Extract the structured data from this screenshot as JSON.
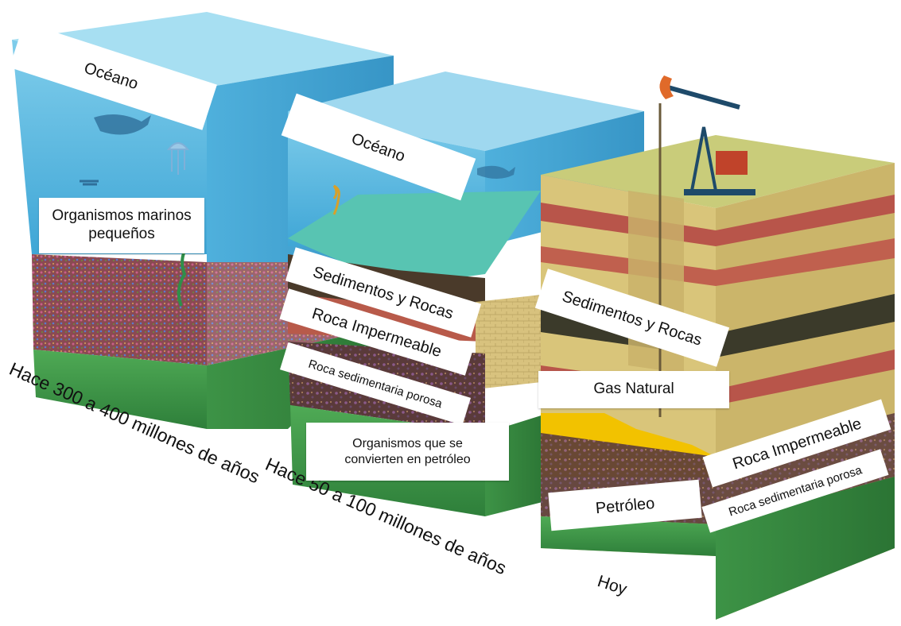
{
  "labels": {
    "ocean_1": "Océano",
    "small_marine_organisms": "Organismos marinos pequeños",
    "ocean_2": "Océano",
    "sediments_rocks_2": "Sedimentos y Rocas",
    "impermeable_rock_2": "Roca Impermeable",
    "porous_rock_2": "Roca sedimentaria porosa",
    "organisms_to_oil": "Organismos que se convierten en petróleo",
    "sediments_rocks_3": "Sedimentos y Rocas",
    "natural_gas": "Gas Natural",
    "impermeable_rock_3": "Roca Impermeable",
    "oil": "Petróleo",
    "porous_rock_3": "Roca sedimentaria porosa"
  },
  "timeline": {
    "stage_1": "Hace 300 a 400 millones de años",
    "stage_2": "Hace 50 a 100 millones de años",
    "stage_3": "Hoy"
  },
  "colors": {
    "ocean": "#5cb8e0",
    "sand": "#d9c57a",
    "red_band": "#b8554a",
    "dark_band": "#3b3a2a",
    "grass": "#3f9a4a",
    "oil": "#f2c200"
  }
}
